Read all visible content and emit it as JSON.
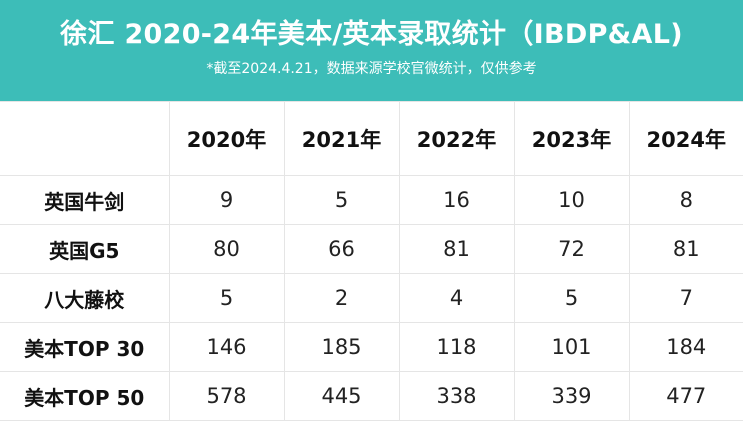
{
  "header": {
    "title": "徐汇 2020-24年美本/英本录取统计（IBDP&AL)",
    "subtitle": "*截至2024.4.21，数据来源学校官微统计，仅供参考",
    "background_color": "#3dbdb8"
  },
  "table": {
    "corner": "",
    "columns": [
      "2020年",
      "2021年",
      "2022年",
      "2023年",
      "2024年"
    ],
    "rows": [
      {
        "label": "英国牛剑",
        "values": [
          "9",
          "5",
          "16",
          "10",
          "8"
        ]
      },
      {
        "label": "英国G5",
        "values": [
          "80",
          "66",
          "81",
          "72",
          "81"
        ]
      },
      {
        "label": "八大藤校",
        "values": [
          "5",
          "2",
          "4",
          "5",
          "7"
        ]
      },
      {
        "label": "美本TOP 30",
        "values": [
          "146",
          "185",
          "118",
          "101",
          "184"
        ]
      },
      {
        "label": "美本TOP 50",
        "values": [
          "578",
          "445",
          "338",
          "339",
          "477"
        ]
      }
    ]
  }
}
